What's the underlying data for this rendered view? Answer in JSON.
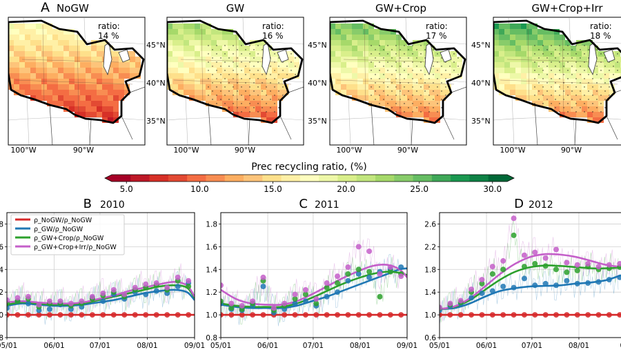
{
  "maps": [
    {
      "letter": "A",
      "title": "NoGW",
      "ratio_label": "ratio:",
      "ratio_value": "14 %",
      "ratio_pct": 14,
      "stipple": false,
      "south_pct": 7,
      "north_pct": 18
    },
    {
      "letter": "",
      "title": "GW",
      "ratio_label": "ratio:",
      "ratio_value": "16 %",
      "ratio_pct": 16,
      "stipple": true,
      "south_pct": 9,
      "north_pct": 23
    },
    {
      "letter": "",
      "title": "GW+Crop",
      "ratio_label": "ratio:",
      "ratio_value": "17 %",
      "ratio_pct": 17,
      "stipple": true,
      "south_pct": 10,
      "north_pct": 25
    },
    {
      "letter": "",
      "title": "GW+Crop+Irr",
      "ratio_label": "ratio:",
      "ratio_value": "18 %",
      "ratio_pct": 18,
      "stipple": true,
      "south_pct": 10,
      "north_pct": 27
    }
  ],
  "map_axes": {
    "lat_labels": [
      "45°N",
      "40°N",
      "35°N"
    ],
    "lon_labels": [
      "100°W",
      "90°W"
    ]
  },
  "colorbar": {
    "title": "Prec recycling ratio, (%)",
    "min": 4,
    "max": 31,
    "ticks": [
      5.0,
      10.0,
      15.0,
      20.0,
      25.0,
      30.0
    ],
    "tick_labels": [
      "5.0",
      "10.0",
      "15.0",
      "20.0",
      "25.0",
      "30.0"
    ],
    "colors": [
      "#a50026",
      "#be1827",
      "#d73027",
      "#e34a33",
      "#f46d43",
      "#f88d52",
      "#fdae61",
      "#fdc47a",
      "#fee08b",
      "#fff0a6",
      "#ffffbf",
      "#eef8a8",
      "#d9ef8b",
      "#c2e67e",
      "#a6d96a",
      "#88cc6a",
      "#66bd63",
      "#3fa858",
      "#1a9850",
      "#0e8245",
      "#006837"
    ]
  },
  "chart_data": [
    {
      "type": "line",
      "letter": "B",
      "title": "2010",
      "x_tick_labels": [
        "05/01",
        "06/01",
        "07/01",
        "08/01",
        "09/01"
      ],
      "x_tick_days": [
        0,
        31,
        61,
        92,
        123
      ],
      "xlim_days": [
        0,
        123
      ],
      "ylim": [
        0.8,
        1.9
      ],
      "y_ticks": [
        0.8,
        1.0,
        1.2,
        1.4,
        1.6,
        1.8
      ],
      "y_tick_labels": [
        "0.8",
        "1.0",
        "1.2",
        "1.4",
        "1.6",
        "1.8"
      ],
      "legend_position": "top-left",
      "legend": [
        "ρ_NoGW/ρ_NoGW",
        "ρ_GW/ρ_NoGW",
        "ρ_GW+Crop/ρ_NoGW",
        "ρ_GW+Crop+Irr/ρ_NoGW"
      ],
      "series": [
        {
          "name": "ρ_NoGW/ρ_NoGW",
          "color": "#d62728",
          "curve_x": [
            0,
            123
          ],
          "curve_y": [
            1.0,
            1.0
          ],
          "points_x": [
            0,
            7,
            14,
            21,
            28,
            35,
            42,
            49,
            56,
            63,
            70,
            77,
            84,
            91,
            98,
            105,
            112,
            119
          ],
          "points_y": [
            1.0,
            1.0,
            1.0,
            1.0,
            1.0,
            1.0,
            1.0,
            1.0,
            1.0,
            1.0,
            1.0,
            1.0,
            1.0,
            1.0,
            1.0,
            1.0,
            1.0,
            1.0
          ]
        },
        {
          "name": "ρ_GW/ρ_NoGW",
          "color": "#1f77b4",
          "curve_x": [
            0,
            10,
            20,
            30,
            40,
            50,
            60,
            70,
            80,
            90,
            100,
            110,
            118,
            123
          ],
          "curve_y": [
            1.08,
            1.1,
            1.09,
            1.08,
            1.08,
            1.09,
            1.11,
            1.13,
            1.16,
            1.19,
            1.21,
            1.22,
            1.2,
            1.13
          ],
          "points_x": [
            0,
            7,
            14,
            21,
            28,
            35,
            42,
            49,
            56,
            63,
            70,
            77,
            84,
            91,
            98,
            105,
            112,
            119
          ],
          "points_y": [
            1.06,
            1.12,
            1.1,
            1.04,
            1.05,
            1.09,
            1.05,
            1.07,
            1.15,
            1.12,
            1.18,
            1.14,
            1.2,
            1.18,
            1.21,
            1.19,
            1.25,
            1.28
          ]
        },
        {
          "name": "ρ_GW+Crop/ρ_NoGW",
          "color": "#2ca02c",
          "curve_x": [
            0,
            10,
            20,
            30,
            40,
            50,
            60,
            70,
            80,
            90,
            100,
            110,
            118,
            123
          ],
          "curve_y": [
            1.09,
            1.11,
            1.1,
            1.09,
            1.09,
            1.1,
            1.13,
            1.16,
            1.19,
            1.22,
            1.25,
            1.26,
            1.24,
            1.15
          ],
          "points_x": [
            0,
            7,
            14,
            21,
            28,
            35,
            42,
            49,
            56,
            63,
            70,
            77,
            84,
            91,
            98,
            105,
            112,
            119
          ],
          "points_y": [
            1.1,
            1.12,
            1.14,
            1.07,
            1.1,
            1.1,
            1.08,
            1.1,
            1.14,
            1.17,
            1.2,
            1.16,
            1.22,
            1.24,
            1.26,
            1.22,
            1.3,
            1.25
          ]
        },
        {
          "name": "ρ_GW+Crop+Irr/ρ_NoGW",
          "color": "#c45ec9",
          "curve_x": [
            0,
            10,
            20,
            30,
            40,
            50,
            60,
            70,
            80,
            90,
            100,
            110,
            118,
            123
          ],
          "curve_y": [
            1.11,
            1.12,
            1.11,
            1.1,
            1.1,
            1.11,
            1.14,
            1.17,
            1.21,
            1.24,
            1.27,
            1.29,
            1.26,
            1.16
          ],
          "points_x": [
            0,
            7,
            14,
            21,
            28,
            35,
            42,
            49,
            56,
            63,
            70,
            77,
            84,
            91,
            98,
            105,
            112,
            119
          ],
          "points_y": [
            1.13,
            1.15,
            1.16,
            1.09,
            1.12,
            1.12,
            1.1,
            1.12,
            1.16,
            1.19,
            1.22,
            1.18,
            1.24,
            1.27,
            1.28,
            1.24,
            1.33,
            1.3
          ]
        }
      ]
    },
    {
      "type": "line",
      "letter": "C",
      "title": "2011",
      "x_tick_labels": [
        "05/01",
        "06/01",
        "07/01",
        "08/01",
        "09/01"
      ],
      "x_tick_days": [
        0,
        31,
        61,
        92,
        123
      ],
      "xlim_days": [
        0,
        123
      ],
      "ylim": [
        0.8,
        1.9
      ],
      "y_ticks": [
        0.8,
        1.0,
        1.2,
        1.4,
        1.6,
        1.8
      ],
      "y_tick_labels": [
        "0.8",
        "1.0",
        "1.2",
        "1.4",
        "1.6",
        "1.8"
      ],
      "series": [
        {
          "name": "ρ_NoGW/ρ_NoGW",
          "color": "#d62728",
          "curve_x": [
            0,
            123
          ],
          "curve_y": [
            1.0,
            1.0
          ],
          "points_x": [
            0,
            7,
            14,
            21,
            28,
            35,
            42,
            49,
            56,
            63,
            70,
            77,
            84,
            91,
            98,
            105,
            112,
            119
          ],
          "points_y": [
            1.0,
            1.0,
            1.0,
            1.0,
            1.0,
            1.0,
            1.0,
            1.0,
            1.0,
            1.0,
            1.0,
            1.0,
            1.0,
            1.0,
            1.0,
            1.0,
            1.0,
            1.0
          ]
        },
        {
          "name": "ρ_GW/ρ_NoGW",
          "color": "#1f77b4",
          "curve_x": [
            0,
            10,
            20,
            30,
            40,
            50,
            60,
            70,
            80,
            90,
            100,
            110,
            118,
            123
          ],
          "curve_y": [
            1.09,
            1.07,
            1.06,
            1.06,
            1.06,
            1.08,
            1.12,
            1.16,
            1.21,
            1.26,
            1.31,
            1.36,
            1.4,
            1.41
          ],
          "points_x": [
            0,
            7,
            14,
            21,
            28,
            35,
            42,
            49,
            56,
            63,
            70,
            77,
            84,
            91,
            98,
            105,
            112,
            119
          ],
          "points_y": [
            1.1,
            1.05,
            1.04,
            1.08,
            1.25,
            1.02,
            1.05,
            1.1,
            1.12,
            1.08,
            1.16,
            1.2,
            1.3,
            1.36,
            1.33,
            1.38,
            1.4,
            1.42
          ]
        },
        {
          "name": "ρ_GW+Crop/ρ_NoGW",
          "color": "#2ca02c",
          "curve_x": [
            0,
            10,
            20,
            30,
            40,
            50,
            60,
            70,
            80,
            90,
            100,
            110,
            118,
            123
          ],
          "curve_y": [
            1.1,
            1.08,
            1.07,
            1.07,
            1.07,
            1.1,
            1.15,
            1.21,
            1.27,
            1.32,
            1.36,
            1.38,
            1.37,
            1.35
          ],
          "points_x": [
            0,
            7,
            14,
            21,
            28,
            35,
            42,
            49,
            56,
            63,
            70,
            77,
            84,
            91,
            98,
            105,
            112,
            119
          ],
          "points_y": [
            1.12,
            1.06,
            1.05,
            1.1,
            1.3,
            1.04,
            1.08,
            1.14,
            1.18,
            1.1,
            1.24,
            1.28,
            1.36,
            1.4,
            1.38,
            1.16,
            1.38,
            1.36
          ]
        },
        {
          "name": "ρ_GW+Crop+Irr/ρ_NoGW",
          "color": "#c45ec9",
          "curve_x": [
            0,
            10,
            20,
            30,
            40,
            50,
            60,
            70,
            80,
            90,
            100,
            110,
            118,
            123
          ],
          "curve_y": [
            1.22,
            1.14,
            1.1,
            1.09,
            1.09,
            1.12,
            1.18,
            1.25,
            1.32,
            1.38,
            1.43,
            1.44,
            1.4,
            1.33
          ],
          "points_x": [
            0,
            7,
            14,
            21,
            28,
            35,
            42,
            49,
            56,
            63,
            70,
            77,
            84,
            91,
            98,
            105,
            112,
            119
          ],
          "points_y": [
            1.26,
            1.1,
            1.08,
            1.12,
            1.33,
            1.06,
            1.1,
            1.18,
            1.22,
            1.14,
            1.28,
            1.34,
            1.42,
            1.6,
            1.56,
            1.36,
            1.42,
            1.34
          ]
        }
      ]
    },
    {
      "type": "line",
      "letter": "D",
      "title": "2012",
      "x_tick_labels": [
        "05/01",
        "06/01",
        "07/01",
        "08/01",
        "09/"
      ],
      "x_tick_days": [
        0,
        31,
        61,
        92,
        123
      ],
      "xlim_days": [
        0,
        123
      ],
      "ylim": [
        0.6,
        2.8
      ],
      "y_ticks": [
        0.6,
        1.0,
        1.4,
        1.8,
        2.2,
        2.6
      ],
      "y_tick_labels": [
        "0.6",
        "1.0",
        "1.4",
        "1.8",
        "2.2",
        "2.6"
      ],
      "series": [
        {
          "name": "ρ_NoGW/ρ_NoGW",
          "color": "#d62728",
          "curve_x": [
            0,
            123
          ],
          "curve_y": [
            1.0,
            1.0
          ],
          "points_x": [
            0,
            7,
            14,
            21,
            28,
            35,
            42,
            49,
            56,
            63,
            70,
            77,
            84,
            91,
            98,
            105,
            112,
            119
          ],
          "points_y": [
            1.0,
            1.0,
            1.0,
            1.0,
            1.0,
            1.0,
            1.0,
            1.0,
            1.0,
            1.0,
            1.0,
            1.0,
            1.0,
            1.0,
            1.0,
            1.0,
            1.0,
            1.0
          ]
        },
        {
          "name": "ρ_GW/ρ_NoGW",
          "color": "#1f77b4",
          "curve_x": [
            0,
            10,
            20,
            30,
            40,
            50,
            60,
            70,
            80,
            90,
            100,
            110,
            118,
            123
          ],
          "curve_y": [
            1.1,
            1.12,
            1.2,
            1.32,
            1.42,
            1.47,
            1.5,
            1.51,
            1.52,
            1.55,
            1.57,
            1.61,
            1.68,
            1.72
          ],
          "points_x": [
            0,
            7,
            14,
            21,
            28,
            35,
            42,
            49,
            56,
            63,
            70,
            77,
            84,
            91,
            98,
            105,
            112,
            119
          ],
          "points_y": [
            1.08,
            1.15,
            1.2,
            1.3,
            1.38,
            1.42,
            1.5,
            1.48,
            1.64,
            1.52,
            1.55,
            1.52,
            1.6,
            1.55,
            1.56,
            1.58,
            1.62,
            1.66
          ]
        },
        {
          "name": "ρ_GW+Crop/ρ_NoGW",
          "color": "#2ca02c",
          "curve_x": [
            0,
            10,
            20,
            30,
            40,
            50,
            60,
            70,
            80,
            90,
            100,
            110,
            118,
            123
          ],
          "curve_y": [
            1.1,
            1.14,
            1.26,
            1.44,
            1.62,
            1.76,
            1.84,
            1.87,
            1.86,
            1.84,
            1.82,
            1.82,
            1.83,
            1.84
          ],
          "points_x": [
            0,
            7,
            14,
            21,
            28,
            35,
            42,
            49,
            56,
            63,
            70,
            77,
            84,
            91,
            98,
            105,
            112,
            119
          ],
          "points_y": [
            1.12,
            1.18,
            1.22,
            1.4,
            1.55,
            1.72,
            1.8,
            2.4,
            1.85,
            1.9,
            1.86,
            1.8,
            1.75,
            1.78,
            1.85,
            1.8,
            1.82,
            1.84
          ]
        },
        {
          "name": "ρ_GW+Crop+Irr/ρ_NoGW",
          "color": "#c45ec9",
          "curve_x": [
            0,
            10,
            20,
            30,
            40,
            50,
            60,
            70,
            80,
            90,
            100,
            110,
            118,
            123
          ],
          "curve_y": [
            1.1,
            1.15,
            1.29,
            1.5,
            1.72,
            1.9,
            2.02,
            2.07,
            2.06,
            2.02,
            1.95,
            1.88,
            1.85,
            1.86
          ],
          "points_x": [
            0,
            7,
            14,
            21,
            28,
            35,
            42,
            49,
            56,
            63,
            70,
            77,
            84,
            91,
            98,
            105,
            112,
            119
          ],
          "points_y": [
            1.13,
            1.2,
            1.25,
            1.45,
            1.62,
            1.85,
            1.95,
            2.7,
            2.05,
            2.1,
            2.0,
            2.15,
            1.92,
            1.88,
            1.9,
            1.85,
            1.88,
            1.9
          ]
        }
      ]
    }
  ]
}
